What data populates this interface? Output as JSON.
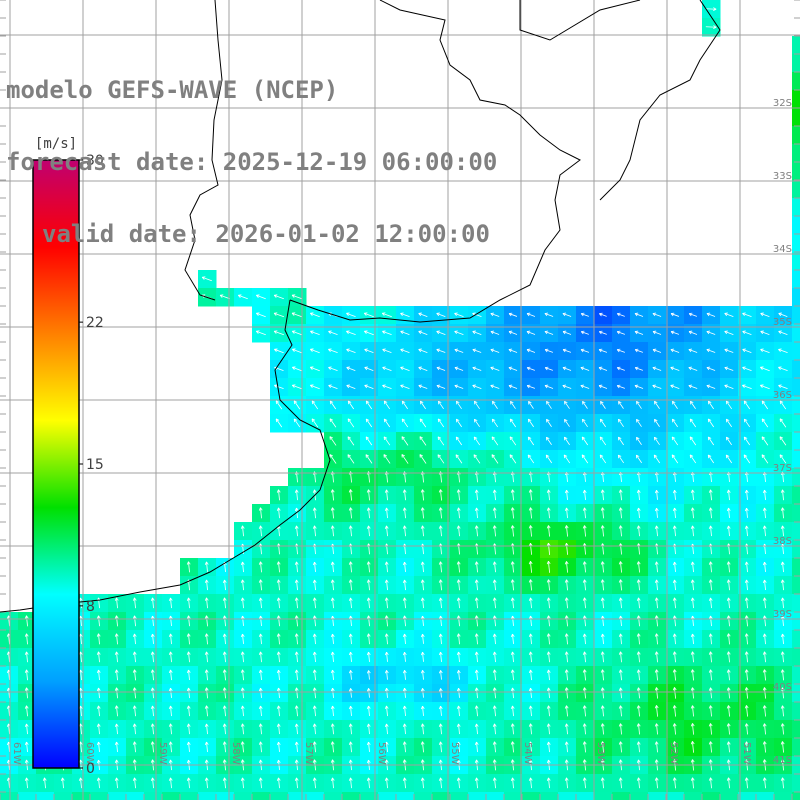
{
  "title": {
    "model": "modelo GEFS-WAVE (NCEP)",
    "forecast": "forecast date: 2025-12-19 06:00:00",
    "valid": "valid date: 2026-01-02 12:00:00"
  },
  "colorbar": {
    "unit": "[m/s]",
    "ticks": [
      {
        "value": 30,
        "label": "30"
      },
      {
        "value": 22,
        "label": "22"
      },
      {
        "value": 15,
        "label": "15"
      },
      {
        "value": 8,
        "label": "8"
      },
      {
        "value": 0,
        "label": "0"
      }
    ],
    "stops": [
      "#0000ff",
      "#00a0ff",
      "#00ffff",
      "#00e000",
      "#ffff00",
      "#ff8000",
      "#ff0000",
      "#c00070"
    ]
  },
  "lat_labels": [
    "32S",
    "33S",
    "34S",
    "35S",
    "36S",
    "37S",
    "38S",
    "39S",
    "40S",
    "41S"
  ],
  "lon_labels": [
    "61W",
    "60W",
    "59W",
    "58W",
    "57W",
    "56W",
    "55W",
    "54W",
    "53W",
    "52W",
    "51W"
  ],
  "colors": {
    "land": "#ffffff",
    "coast": "#000000",
    "grid": "#a0a0a0",
    "arrow": "#ffffff",
    "label": "#808080"
  }
}
